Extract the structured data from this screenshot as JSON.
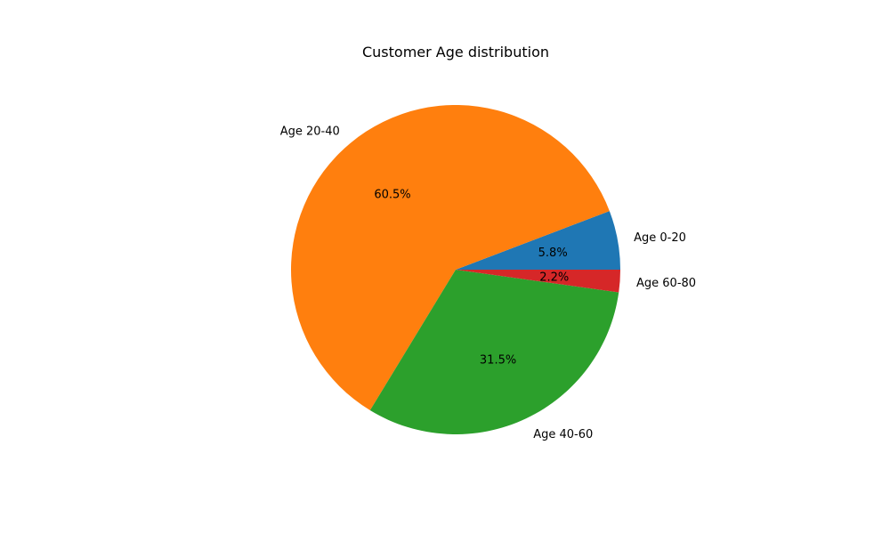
{
  "chart_data": {
    "type": "pie",
    "title": "Customer Age distribution",
    "slices": [
      {
        "label": "Age 0-20",
        "value": 5.8,
        "pct_label": "5.8%",
        "color": "#1f77b4"
      },
      {
        "label": "Age 20-40",
        "value": 60.5,
        "pct_label": "60.5%",
        "color": "#ff7f0e"
      },
      {
        "label": "Age 40-60",
        "value": 31.5,
        "pct_label": "31.5%",
        "color": "#2ca02c"
      },
      {
        "label": "Age 60-80",
        "value": 2.2,
        "pct_label": "2.2%",
        "color": "#d62728"
      }
    ],
    "start_angle_deg": 0,
    "direction": "counterclockwise",
    "legend": "none"
  }
}
